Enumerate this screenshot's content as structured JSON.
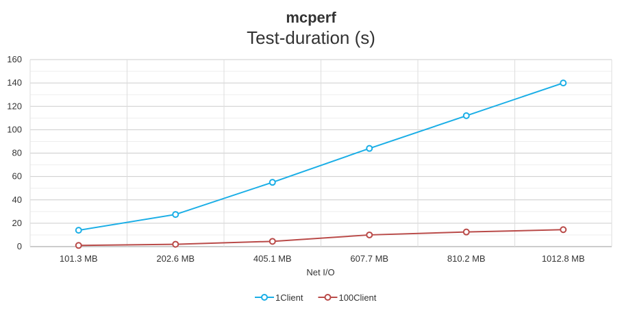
{
  "chart_data": {
    "type": "line",
    "title": "mcperf",
    "subtitle": "Test-duration (s)",
    "xlabel": "Net I/O",
    "ylabel": "",
    "categories": [
      "101.3 MB",
      "202.6 MB",
      "405.1 MB",
      "607.7 MB",
      "810.2 MB",
      "1012.8 MB"
    ],
    "ylim": [
      0,
      160
    ],
    "yticks": [
      0,
      20,
      40,
      60,
      80,
      100,
      120,
      140,
      160
    ],
    "grid": true,
    "legend": "bottom",
    "series": [
      {
        "name": "1Client",
        "color": "#1aaee6",
        "values": [
          14,
          27.5,
          55,
          84,
          112,
          140
        ]
      },
      {
        "name": "100Client",
        "color": "#b94a48",
        "values": [
          1,
          2,
          4.5,
          10,
          12.5,
          14.5
        ]
      }
    ]
  }
}
